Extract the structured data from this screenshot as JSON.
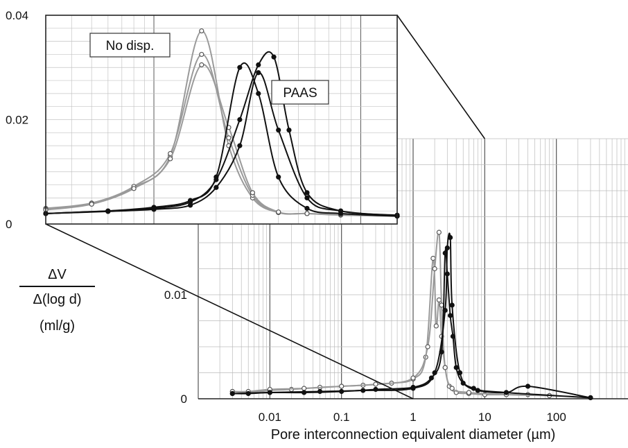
{
  "chart_data": [
    {
      "id": "main",
      "type": "line",
      "x_scale": "log",
      "xlim": [
        0.001,
        1000
      ],
      "ylim": [
        0,
        0.025
      ],
      "xlabel": "Pore interconnection equivalent diameter (µm)",
      "ylabel_num": "ΔV",
      "ylabel_den": "Δ(log d)",
      "ylabel_unit": "(ml/g)",
      "x_tick_labels": [
        "0.01",
        "0.1",
        "1",
        "10",
        "100"
      ],
      "x_ticks": [
        0.01,
        0.1,
        1,
        10,
        100
      ],
      "y_tick_labels": [
        "0",
        "0.01",
        "0.02"
      ],
      "y_ticks": [
        0,
        0.01,
        0.02
      ],
      "grid": true,
      "colors": {
        "no_disp": "#9a9a9a",
        "paas": "#111111"
      },
      "series": [
        {
          "group": "no_disp",
          "marker": "open-circle",
          "x": [
            0.003,
            0.005,
            0.01,
            0.02,
            0.05,
            0.1,
            0.2,
            0.5,
            1.0,
            1.5,
            1.9,
            2.1,
            2.3,
            2.5,
            2.8,
            3.2,
            4,
            6,
            10,
            20,
            40,
            80
          ],
          "y": [
            0.0007,
            0.0006,
            0.0008,
            0.0009,
            0.0011,
            0.0012,
            0.0013,
            0.0015,
            0.0019,
            0.004,
            0.0135,
            0.007,
            0.0095,
            0.006,
            0.003,
            0.0012,
            0.0006,
            0.0005,
            0.0004,
            0.0004,
            0.0004,
            0.0003
          ]
        },
        {
          "group": "no_disp",
          "marker": "open-circle",
          "x": [
            0.003,
            0.005,
            0.01,
            0.03,
            0.1,
            0.3,
            1.0,
            1.6,
            2.0,
            2.3,
            2.5,
            2.8,
            3.5,
            6,
            20,
            80
          ],
          "y": [
            0.0007,
            0.0007,
            0.0009,
            0.001,
            0.0012,
            0.0014,
            0.002,
            0.005,
            0.0125,
            0.016,
            0.009,
            0.003,
            0.001,
            0.0006,
            0.0004,
            0.0003
          ]
        },
        {
          "group": "paas",
          "marker": "filled-circle",
          "x": [
            0.003,
            0.005,
            0.01,
            0.03,
            0.1,
            0.3,
            1.0,
            1.8,
            2.5,
            2.8,
            3.0,
            3.3,
            3.6,
            4,
            5,
            8,
            20,
            40,
            300
          ],
          "y": [
            0.0005,
            0.0005,
            0.0006,
            0.0006,
            0.0007,
            0.0009,
            0.0011,
            0.002,
            0.0045,
            0.014,
            0.012,
            0.008,
            0.006,
            0.003,
            0.0015,
            0.0008,
            0.0006,
            0.0012,
            0.0001
          ]
        },
        {
          "group": "paas",
          "marker": "filled-circle",
          "x": [
            0.003,
            0.01,
            0.05,
            0.2,
            1.0,
            2.0,
            2.8,
            3.0,
            3.3,
            3.5,
            4.5,
            7,
            20,
            300
          ],
          "y": [
            0.0005,
            0.0006,
            0.0007,
            0.0008,
            0.001,
            0.0025,
            0.0085,
            0.0145,
            0.0155,
            0.009,
            0.0025,
            0.001,
            0.0006,
            0.0001
          ]
        }
      ]
    },
    {
      "id": "inset",
      "type": "line",
      "x_scale": "log",
      "xlim": [
        0.3,
        15
      ],
      "ylim": [
        0,
        0.04
      ],
      "y_tick_labels": [
        "0",
        "0.02",
        "0.04"
      ],
      "y_ticks": [
        0,
        0.02,
        0.04
      ],
      "grid": true,
      "annotations": [
        "No disp.",
        "PAAS"
      ],
      "series": [
        {
          "group": "no_disp",
          "marker": "open-circle",
          "x": [
            0.3,
            0.5,
            0.8,
            1.2,
            1.7,
            2.3,
            3.0,
            4.0,
            5.5,
            8,
            15
          ],
          "y": [
            0.003,
            0.004,
            0.007,
            0.013,
            0.037,
            0.015,
            0.005,
            0.0022,
            0.002,
            0.0018,
            0.0016
          ]
        },
        {
          "group": "no_disp",
          "marker": "open-circle",
          "x": [
            0.3,
            0.5,
            0.8,
            1.2,
            1.7,
            2.3,
            3.0,
            4.0,
            5.5,
            8,
            15
          ],
          "y": [
            0.0028,
            0.004,
            0.0072,
            0.0135,
            0.0325,
            0.0165,
            0.0055,
            0.0022,
            0.002,
            0.0017,
            0.0015
          ]
        },
        {
          "group": "no_disp",
          "marker": "open-circle",
          "x": [
            0.3,
            0.5,
            0.8,
            1.2,
            1.7,
            2.3,
            3.0,
            4.0,
            5.5,
            8,
            15
          ],
          "y": [
            0.0027,
            0.0038,
            0.0068,
            0.0125,
            0.0305,
            0.0185,
            0.006,
            0.0023,
            0.002,
            0.0018,
            0.0016
          ]
        },
        {
          "group": "paas",
          "marker": "filled-circle",
          "x": [
            0.3,
            0.6,
            1.0,
            1.5,
            2.0,
            2.6,
            3.2,
            4.0,
            5.5,
            8,
            15
          ],
          "y": [
            0.002,
            0.0025,
            0.0032,
            0.0045,
            0.009,
            0.03,
            0.025,
            0.009,
            0.003,
            0.002,
            0.0015
          ]
        },
        {
          "group": "paas",
          "marker": "filled-circle",
          "x": [
            0.3,
            0.6,
            1.0,
            1.5,
            2.0,
            2.6,
            3.2,
            3.8,
            4.5,
            5.5,
            8,
            15
          ],
          "y": [
            0.002,
            0.0025,
            0.003,
            0.0042,
            0.0085,
            0.02,
            0.0305,
            0.032,
            0.018,
            0.006,
            0.0025,
            0.0017
          ]
        },
        {
          "group": "paas",
          "marker": "filled-circle",
          "x": [
            0.3,
            0.6,
            1.0,
            1.5,
            2.0,
            2.6,
            3.2,
            4.0,
            5.5,
            8,
            15
          ],
          "y": [
            0.002,
            0.0024,
            0.0028,
            0.0036,
            0.007,
            0.015,
            0.029,
            0.018,
            0.005,
            0.0025,
            0.0016
          ]
        }
      ]
    }
  ]
}
